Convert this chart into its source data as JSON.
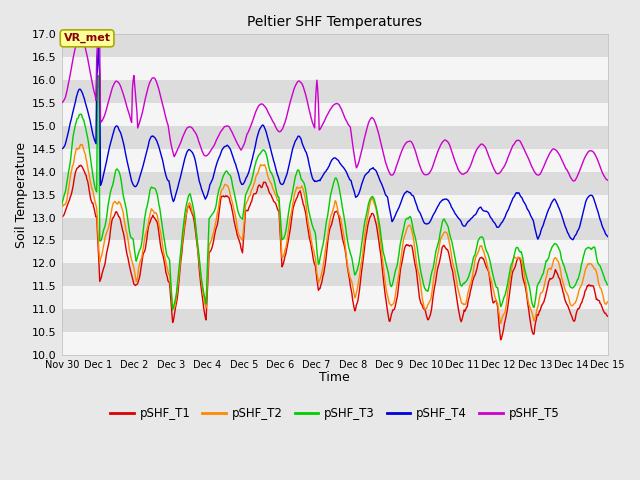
{
  "title": "Peltier SHF Temperatures",
  "xlabel": "Time",
  "ylabel": "Soil Temperature",
  "ylim": [
    10.0,
    17.0
  ],
  "yticks": [
    10.0,
    10.5,
    11.0,
    11.5,
    12.0,
    12.5,
    13.0,
    13.5,
    14.0,
    14.5,
    15.0,
    15.5,
    16.0,
    16.5,
    17.0
  ],
  "fig_facecolor": "#e8e8e8",
  "ax_facecolor": "#e8e8e8",
  "grid_colors": [
    "#f5f5f5",
    "#dcdcdc"
  ],
  "series": [
    {
      "label": "pSHF_T1",
      "color": "#dd0000"
    },
    {
      "label": "pSHF_T2",
      "color": "#ff8800"
    },
    {
      "label": "pSHF_T3",
      "color": "#00cc00"
    },
    {
      "label": "pSHF_T4",
      "color": "#0000dd"
    },
    {
      "label": "pSHF_T5",
      "color": "#cc00cc"
    }
  ],
  "annotation_text": "VR_met",
  "annotation_bgcolor": "#ffff99",
  "annotation_edgecolor": "#aaaa00",
  "annotation_textcolor": "#880000",
  "xtick_labels": [
    "Nov 30",
    "Dec 1",
    "Dec 2",
    "Dec 3",
    "Dec 4",
    "Dec 5",
    "Dec 6",
    "Dec 7",
    "Dec 8",
    "Dec 9",
    "Dec 10",
    "Dec 11",
    "Dec 12",
    "Dec 13",
    "Dec 14",
    "Dec 15"
  ],
  "num_points": 720
}
